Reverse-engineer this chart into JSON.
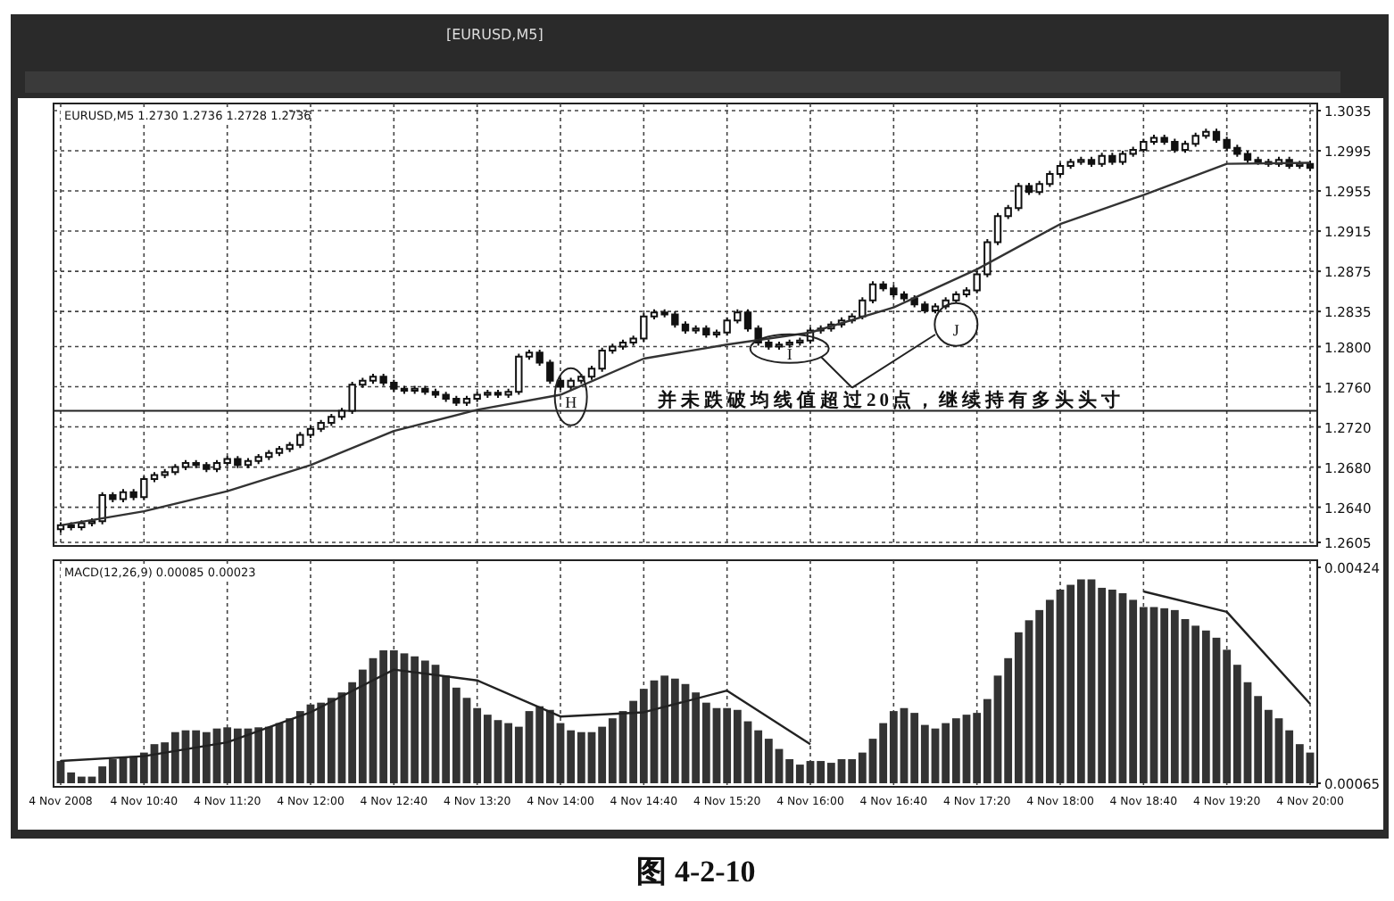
{
  "chart_data": [
    {
      "type": "candlestick",
      "title": "[EURUSD,M5]",
      "subtitle": "EURUSD,M5  1.2730 1.2736 1.2728 1.2736",
      "categories": [
        "4 Nov 2008",
        null,
        null,
        null,
        null,
        null,
        null,
        null,
        "4 Nov 10:40",
        null,
        null,
        null,
        null,
        null,
        null,
        null,
        "4 Nov 11:20",
        null,
        null,
        null,
        null,
        null,
        null,
        null,
        "4 Nov 12:00",
        null,
        null,
        null,
        null,
        null,
        null,
        null,
        "4 Nov 12:40",
        null,
        null,
        null,
        null,
        null,
        null,
        null,
        "4 Nov 13:20",
        null,
        null,
        null,
        null,
        null,
        null,
        null,
        "4 Nov 14:00",
        null,
        null,
        null,
        null,
        null,
        null,
        null,
        "4 Nov 14:40",
        null,
        null,
        null,
        null,
        null,
        null,
        null,
        "4 Nov 15:20",
        null,
        null,
        null,
        null,
        null,
        null,
        null,
        "4 Nov 16:00",
        null,
        null,
        null,
        null,
        null,
        null,
        null,
        "4 Nov 16:40",
        null,
        null,
        null,
        null,
        null,
        null,
        null,
        "4 Nov 17:20",
        null,
        null,
        null,
        null,
        null,
        null,
        null,
        "4 Nov 18:00",
        null,
        null,
        null,
        null,
        null,
        null,
        null,
        "4 Nov 18:40",
        null,
        null,
        null,
        null,
        null,
        null,
        null,
        "4 Nov 19:20",
        null,
        null,
        null,
        null,
        null,
        null,
        null,
        "4 Nov 20:00"
      ],
      "ohlc": [
        [
          1.2618,
          1.2625,
          1.2615,
          1.2622
        ],
        [
          1.2622,
          1.2625,
          1.2617,
          1.262
        ],
        [
          1.262,
          1.2627,
          1.2617,
          1.2624
        ],
        [
          1.2624,
          1.2629,
          1.2621,
          1.2626
        ],
        [
          1.2626,
          1.2655,
          1.2623,
          1.2652
        ],
        [
          1.2652,
          1.2655,
          1.2645,
          1.2648
        ],
        [
          1.2648,
          1.2658,
          1.2645,
          1.2655
        ],
        [
          1.2655,
          1.2658,
          1.2647,
          1.265
        ],
        [
          1.265,
          1.2671,
          1.2647,
          1.2668
        ],
        [
          1.2668,
          1.2675,
          1.2665,
          1.2672
        ],
        [
          1.2672,
          1.2678,
          1.2669,
          1.2675
        ],
        [
          1.2675,
          1.2683,
          1.2672,
          1.268
        ],
        [
          1.268,
          1.2687,
          1.2677,
          1.2684
        ],
        [
          1.2684,
          1.2687,
          1.2679,
          1.2682
        ],
        [
          1.2682,
          1.2685,
          1.2675,
          1.2678
        ],
        [
          1.2678,
          1.2687,
          1.2675,
          1.2684
        ],
        [
          1.2684,
          1.2691,
          1.2681,
          1.2688
        ],
        [
          1.2688,
          1.2691,
          1.2679,
          1.2682
        ],
        [
          1.2682,
          1.2689,
          1.2679,
          1.2686
        ],
        [
          1.2686,
          1.2693,
          1.2683,
          1.269
        ],
        [
          1.269,
          1.2697,
          1.2687,
          1.2694
        ],
        [
          1.2694,
          1.2701,
          1.2691,
          1.2698
        ],
        [
          1.2698,
          1.2705,
          1.2695,
          1.2702
        ],
        [
          1.2702,
          1.2715,
          1.2699,
          1.2712
        ],
        [
          1.2712,
          1.2721,
          1.2709,
          1.2718
        ],
        [
          1.2718,
          1.2727,
          1.2715,
          1.2724
        ],
        [
          1.2724,
          1.2733,
          1.2721,
          1.273
        ],
        [
          1.273,
          1.2739,
          1.2727,
          1.2736
        ],
        [
          1.2736,
          1.2765,
          1.2733,
          1.2762
        ],
        [
          1.2762,
          1.2769,
          1.2759,
          1.2766
        ],
        [
          1.2766,
          1.2773,
          1.2763,
          1.277
        ],
        [
          1.277,
          1.2773,
          1.2761,
          1.2764
        ],
        [
          1.2764,
          1.2767,
          1.2755,
          1.2758
        ],
        [
          1.2758,
          1.2761,
          1.2753,
          1.2756
        ],
        [
          1.2756,
          1.2761,
          1.2753,
          1.2758
        ],
        [
          1.2758,
          1.2761,
          1.2752,
          1.2755
        ],
        [
          1.2755,
          1.2758,
          1.2749,
          1.2752
        ],
        [
          1.2752,
          1.2755,
          1.2745,
          1.2748
        ],
        [
          1.2748,
          1.2751,
          1.2741,
          1.2744
        ],
        [
          1.2744,
          1.2751,
          1.2741,
          1.2748
        ],
        [
          1.2748,
          1.2755,
          1.2745,
          1.2752
        ],
        [
          1.2752,
          1.2757,
          1.2749,
          1.2754
        ],
        [
          1.2754,
          1.2757,
          1.2749,
          1.2752
        ],
        [
          1.2752,
          1.2758,
          1.2749,
          1.2755
        ],
        [
          1.2755,
          1.2793,
          1.2752,
          1.279
        ],
        [
          1.279,
          1.2797,
          1.2787,
          1.2794
        ],
        [
          1.2794,
          1.2797,
          1.2781,
          1.2784
        ],
        [
          1.2784,
          1.2787,
          1.2763,
          1.2766
        ],
        [
          1.2766,
          1.2769,
          1.2757,
          1.276
        ],
        [
          1.276,
          1.2769,
          1.2757,
          1.2766
        ],
        [
          1.2766,
          1.2773,
          1.2763,
          1.277
        ],
        [
          1.277,
          1.2781,
          1.2767,
          1.2778
        ],
        [
          1.2778,
          1.2799,
          1.2775,
          1.2796
        ],
        [
          1.2796,
          1.2803,
          1.2793,
          1.28
        ],
        [
          1.28,
          1.2807,
          1.2797,
          1.2804
        ],
        [
          1.2804,
          1.2811,
          1.2801,
          1.2808
        ],
        [
          1.2808,
          1.2833,
          1.2805,
          1.283
        ],
        [
          1.283,
          1.2837,
          1.2827,
          1.2834
        ],
        [
          1.2834,
          1.2837,
          1.2829,
          1.2832
        ],
        [
          1.2832,
          1.2835,
          1.2819,
          1.2822
        ],
        [
          1.2822,
          1.2825,
          1.2813,
          1.2816
        ],
        [
          1.2816,
          1.2821,
          1.2813,
          1.2818
        ],
        [
          1.2818,
          1.2821,
          1.2809,
          1.2812
        ],
        [
          1.2812,
          1.2817,
          1.2809,
          1.2814
        ],
        [
          1.2814,
          1.2829,
          1.2811,
          1.2826
        ],
        [
          1.2826,
          1.2837,
          1.2823,
          1.2834
        ],
        [
          1.2834,
          1.2837,
          1.2815,
          1.2818
        ],
        [
          1.2818,
          1.2821,
          1.2801,
          1.2804
        ],
        [
          1.2804,
          1.2807,
          1.2797,
          1.28
        ],
        [
          1.28,
          1.2805,
          1.2797,
          1.2802
        ],
        [
          1.2802,
          1.2807,
          1.2799,
          1.2804
        ],
        [
          1.2804,
          1.2809,
          1.2801,
          1.2806
        ],
        [
          1.2806,
          1.2819,
          1.2803,
          1.2816
        ],
        [
          1.2816,
          1.2821,
          1.2813,
          1.2818
        ],
        [
          1.2818,
          1.2825,
          1.2815,
          1.2822
        ],
        [
          1.2822,
          1.2829,
          1.2819,
          1.2826
        ],
        [
          1.2826,
          1.2833,
          1.2823,
          1.283
        ],
        [
          1.283,
          1.2849,
          1.2827,
          1.2846
        ],
        [
          1.2846,
          1.2865,
          1.2843,
          1.2862
        ],
        [
          1.2862,
          1.2865,
          1.2855,
          1.2858
        ],
        [
          1.2858,
          1.2861,
          1.2849,
          1.2852
        ],
        [
          1.2852,
          1.2855,
          1.2845,
          1.2848
        ],
        [
          1.2848,
          1.2851,
          1.2839,
          1.2842
        ],
        [
          1.2842,
          1.2845,
          1.2833,
          1.2836
        ],
        [
          1.2836,
          1.2843,
          1.2833,
          1.284
        ],
        [
          1.284,
          1.2849,
          1.2837,
          1.2846
        ],
        [
          1.2846,
          1.2855,
          1.2843,
          1.2852
        ],
        [
          1.2852,
          1.2859,
          1.2849,
          1.2856
        ],
        [
          1.2856,
          1.2875,
          1.2853,
          1.2872
        ],
        [
          1.2872,
          1.2907,
          1.2869,
          1.2904
        ],
        [
          1.2904,
          1.2933,
          1.2901,
          1.293
        ],
        [
          1.293,
          1.2941,
          1.2927,
          1.2938
        ],
        [
          1.2938,
          1.2963,
          1.2935,
          1.296
        ],
        [
          1.296,
          1.2963,
          1.2951,
          1.2954
        ],
        [
          1.2954,
          1.2965,
          1.2951,
          1.2962
        ],
        [
          1.2962,
          1.2975,
          1.2959,
          1.2972
        ],
        [
          1.2972,
          1.2983,
          1.2969,
          1.298
        ],
        [
          1.298,
          1.2987,
          1.2977,
          1.2984
        ],
        [
          1.2984,
          1.2989,
          1.2981,
          1.2986
        ],
        [
          1.2986,
          1.2989,
          1.2979,
          1.2982
        ],
        [
          1.2982,
          1.2993,
          1.2979,
          1.299
        ],
        [
          1.299,
          1.2993,
          1.2981,
          1.2984
        ],
        [
          1.2984,
          1.2995,
          1.2981,
          1.2992
        ],
        [
          1.2992,
          1.2999,
          1.2989,
          1.2996
        ],
        [
          1.2996,
          1.3007,
          1.2993,
          1.3004
        ],
        [
          1.3004,
          1.3011,
          1.3001,
          1.3008
        ],
        [
          1.3008,
          1.3011,
          1.3001,
          1.3004
        ],
        [
          1.3004,
          1.3007,
          1.2993,
          1.2996
        ],
        [
          1.2996,
          1.3005,
          1.2993,
          1.3002
        ],
        [
          1.3002,
          1.3013,
          1.2999,
          1.301
        ],
        [
          1.301,
          1.3017,
          1.3007,
          1.3014
        ],
        [
          1.3014,
          1.3017,
          1.3003,
          1.3006
        ],
        [
          1.3006,
          1.3009,
          1.2995,
          1.2998
        ],
        [
          1.2998,
          1.3001,
          1.2989,
          1.2992
        ],
        [
          1.2992,
          1.2995,
          1.2983,
          1.2986
        ],
        [
          1.2986,
          1.2989,
          1.2981,
          1.2984
        ],
        [
          1.2984,
          1.2987,
          1.2979,
          1.2982
        ],
        [
          1.2982,
          1.2989,
          1.2979,
          1.2986
        ],
        [
          1.2986,
          1.2989,
          1.2977,
          1.298
        ],
        [
          1.298,
          1.2985,
          1.2977,
          1.2982
        ],
        [
          1.2982,
          1.2985,
          1.2975,
          1.2978
        ]
      ],
      "series": [
        {
          "type": "line",
          "color": "#333333",
          "x": [
            "4 Nov 2008",
            "4 Nov 10:40",
            "4 Nov 11:20",
            "4 Nov 12:00",
            "4 Nov 12:40",
            "4 Nov 13:20",
            "4 Nov 14:00",
            "4 Nov 14:40",
            "4 Nov 15:20",
            "4 Nov 16:00",
            "4 Nov 16:40",
            "4 Nov 17:20",
            "4 Nov 18:00",
            "4 Nov 18:40",
            "4 Nov 19:20",
            "4 Nov 20:00"
          ],
          "values": [
            1.2622,
            1.2636,
            1.2656,
            1.2682,
            1.2716,
            1.2737,
            1.2752,
            1.2788,
            1.2802,
            1.2814,
            1.2839,
            1.2877,
            1.2922,
            1.2951,
            1.2982,
            1.2983
          ]
        }
      ],
      "ylim": [
        1.2605,
        1.3035
      ],
      "yticks": [
        1.3035,
        1.2995,
        1.2955,
        1.2915,
        1.2875,
        1.2835,
        {
          "value": 1.28,
          "label": "1.2800"
        },
        {
          "value": 1.276,
          "label": "1.2760"
        },
        {
          "value": 1.272,
          "label": "1.2720"
        },
        {
          "value": 1.268,
          "label": "1.2680"
        },
        {
          "value": 1.264,
          "label": "1.2640"
        },
        1.2605
      ],
      "grid": true,
      "tick_labels": "y",
      "color": "#111111",
      "ref_lines": [
        {
          "axis": "y",
          "value": 1.2736,
          "color": "#222222"
        }
      ],
      "annotations": [
        "H",
        "I",
        "J",
        "并未跌破均线值超过20点，继续持有多头头寸"
      ]
    },
    {
      "type": "bar",
      "title": "MACD(12,26,9) 0.00085 0.00023",
      "categories": [
        "4 Nov 2008",
        null,
        null,
        null,
        null,
        null,
        null,
        null,
        "4 Nov 10:40",
        null,
        null,
        null,
        null,
        null,
        null,
        null,
        "4 Nov 11:20",
        null,
        null,
        null,
        null,
        null,
        null,
        null,
        "4 Nov 12:00",
        null,
        null,
        null,
        null,
        null,
        null,
        null,
        "4 Nov 12:40",
        null,
        null,
        null,
        null,
        null,
        null,
        null,
        "4 Nov 13:20",
        null,
        null,
        null,
        null,
        null,
        null,
        null,
        "4 Nov 14:00",
        null,
        null,
        null,
        null,
        null,
        null,
        null,
        "4 Nov 14:40",
        null,
        null,
        null,
        null,
        null,
        null,
        null,
        "4 Nov 15:20",
        null,
        null,
        null,
        null,
        null,
        null,
        null,
        "4 Nov 16:00",
        null,
        null,
        null,
        null,
        null,
        null,
        null,
        "4 Nov 16:40",
        null,
        null,
        null,
        null,
        null,
        null,
        null,
        "4 Nov 17:20",
        null,
        null,
        null,
        null,
        null,
        null,
        null,
        "4 Nov 18:00",
        null,
        null,
        null,
        null,
        null,
        null,
        null,
        "4 Nov 18:40",
        null,
        null,
        null,
        null,
        null,
        null,
        null,
        "4 Nov 19:20",
        null,
        null,
        null,
        null,
        null,
        null,
        null,
        "4 Nov 20:00"
      ],
      "series": [
        {
          "color": "#333333",
          "values": [
            0.00102,
            0.00083,
            0.00076,
            0.00076,
            0.00093,
            0.00105,
            0.00108,
            0.0011,
            0.00116,
            0.0013,
            0.00133,
            0.0015,
            0.00153,
            0.00153,
            0.0015,
            0.00156,
            0.00158,
            0.00156,
            0.00156,
            0.00158,
            0.00159,
            0.00165,
            0.00173,
            0.00185,
            0.00196,
            0.00199,
            0.00207,
            0.00216,
            0.00233,
            0.00254,
            0.00273,
            0.00286,
            0.00286,
            0.00281,
            0.00276,
            0.00269,
            0.00262,
            0.00244,
            0.00224,
            0.00207,
            0.0019,
            0.00179,
            0.0017,
            0.00165,
            0.00159,
            0.00185,
            0.00193,
            0.00187,
            0.00165,
            0.00153,
            0.0015,
            0.0015,
            0.00159,
            0.00173,
            0.00185,
            0.00202,
            0.00222,
            0.00236,
            0.00244,
            0.00239,
            0.0023,
            0.00216,
            0.00199,
            0.0019,
            0.0019,
            0.00187,
            0.00168,
            0.00153,
            0.00139,
            0.00122,
            0.00105,
            0.00096,
            0.00102,
            0.00102,
            0.00099,
            0.00105,
            0.00105,
            0.00116,
            0.00139,
            0.00165,
            0.00185,
            0.0019,
            0.00182,
            0.00162,
            0.00156,
            0.00165,
            0.00173,
            0.00179,
            0.00182,
            0.00205,
            0.00244,
            0.00273,
            0.00316,
            0.00336,
            0.00353,
            0.0037,
            0.00387,
            0.00395,
            0.00404,
            0.00404,
            0.0039,
            0.00387,
            0.00381,
            0.0037,
            0.00358,
            0.00358,
            0.00356,
            0.00353,
            0.00338,
            0.00327,
            0.00319,
            0.00307,
            0.00287,
            0.00262,
            0.00233,
            0.0021,
            0.00187,
            0.00173,
            0.00153,
            0.0013,
            0.00116
          ]
        },
        {
          "type": "line",
          "color": "#222222",
          "x": [
            "4 Nov 2008",
            "4 Nov 10:40",
            "4 Nov 11:20",
            "4 Nov 12:00",
            "4 Nov 12:40",
            "4 Nov 13:20",
            "4 Nov 14:00",
            "4 Nov 14:40",
            "4 Nov 15:20",
            "4 Nov 16:00",
            "4 Nov 16:40",
            "4 Nov 17:20",
            "4 Nov 18:00",
            "4 Nov 18:40",
            "4 Nov 19:20",
            "4 Nov 20:00"
          ],
          "values": [
            0.00102,
            0.0011,
            0.00133,
            0.00183,
            0.00254,
            0.00236,
            0.00176,
            0.00183,
            0.00219,
            0.0013,
            null,
            null,
            null,
            0.00384,
            0.0035,
            0.00197
          ]
        }
      ],
      "ylim": [
        0.00065,
        0.00424
      ],
      "yticks": [
        0.00424,
        0.00065
      ],
      "grid": "x",
      "annotations": [
        "图 4-2-10"
      ]
    }
  ]
}
